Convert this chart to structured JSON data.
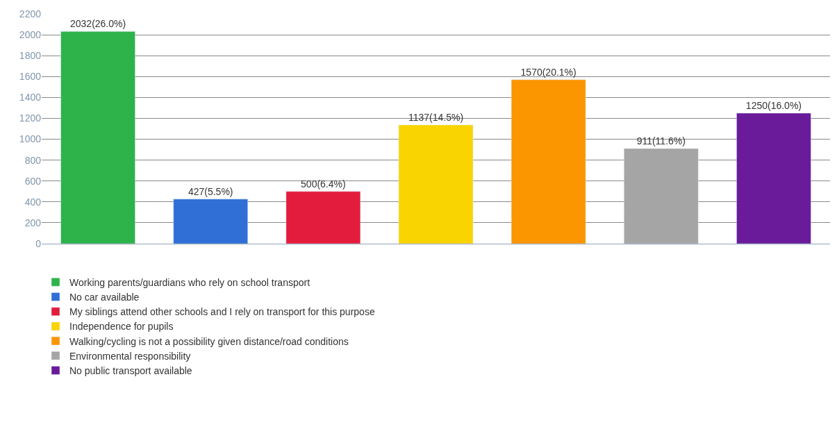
{
  "chart_data": {
    "type": "bar",
    "categories": [
      null,
      null,
      null,
      null,
      null,
      null,
      null
    ],
    "series": [
      {
        "name": "Working parents/guardians who rely on school transport",
        "color": "#2eb34a",
        "values": [
          2032,
          null,
          null,
          null,
          null,
          null,
          null
        ],
        "value_labels": [
          "2032(26.0%)",
          null,
          null,
          null,
          null,
          null,
          null
        ]
      },
      {
        "name": "No car available",
        "color": "#2f6fd6",
        "values": [
          null,
          427,
          null,
          null,
          null,
          null,
          null
        ],
        "value_labels": [
          null,
          "427(5.5%)",
          null,
          null,
          null,
          null,
          null
        ]
      },
      {
        "name": "My siblings attend other schools and I rely on transport for this purpose",
        "color": "#e31c3d",
        "values": [
          null,
          null,
          500,
          null,
          null,
          null,
          null
        ],
        "value_labels": [
          null,
          null,
          "500(6.4%)",
          null,
          null,
          null,
          null
        ]
      },
      {
        "name": "Independence for pupils",
        "color": "#fad400",
        "values": [
          null,
          null,
          null,
          1137,
          null,
          null,
          null
        ],
        "value_labels": [
          null,
          null,
          null,
          "1137(14.5%)",
          null,
          null,
          null
        ]
      },
      {
        "name": "Walking/cycling is not a possibility given distance/road conditions",
        "color": "#fb9500",
        "values": [
          null,
          null,
          null,
          null,
          1570,
          null,
          null
        ],
        "value_labels": [
          null,
          null,
          null,
          null,
          "1570(20.1%)",
          null,
          null
        ]
      },
      {
        "name": "Environmental responsibility",
        "color": "#a5a5a5",
        "values": [
          null,
          null,
          null,
          null,
          null,
          911,
          null
        ],
        "value_labels": [
          null,
          null,
          null,
          null,
          null,
          "911(11.6%)",
          null
        ]
      },
      {
        "name": "No public transport available",
        "color": "#6a1b9a",
        "values": [
          null,
          null,
          null,
          null,
          null,
          null,
          1250
        ],
        "value_labels": [
          null,
          null,
          null,
          null,
          null,
          null,
          "1250(16.0%)"
        ]
      }
    ],
    "ylim": [
      0,
      2200
    ],
    "yticks": [
      0,
      200,
      400,
      600,
      800,
      1000,
      1200,
      1400,
      1600,
      1800,
      2000,
      2200
    ],
    "grid": "y",
    "legend": "bottom",
    "tick_labels": "y"
  }
}
